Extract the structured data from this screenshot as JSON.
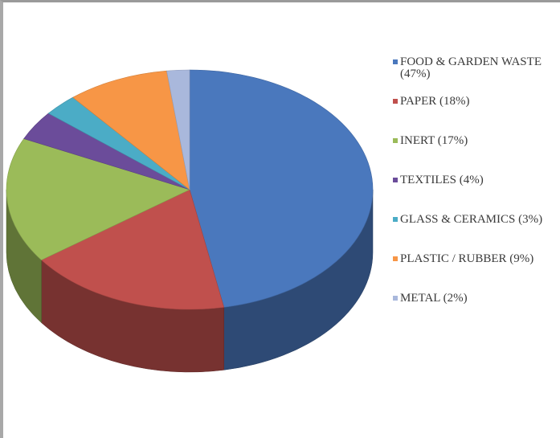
{
  "chart_data": {
    "type": "pie",
    "three_d": true,
    "legend_position": "right",
    "slices": [
      {
        "label": "FOOD & GARDEN WASTE (47%)",
        "value": 47,
        "color": "#4a78bd"
      },
      {
        "label": "PAPER (18%)",
        "value": 18,
        "color": "#c0504d"
      },
      {
        "label": "INERT (17%)",
        "value": 17,
        "color": "#9bbb59"
      },
      {
        "label": "TEXTILES (4%)",
        "value": 4,
        "color": "#6b4c9a"
      },
      {
        "label": "GLASS & CERAMICS (3%)",
        "value": 3,
        "color": "#4bacc6"
      },
      {
        "label": "PLASTIC / RUBBER (9%)",
        "value": 9,
        "color": "#f79646"
      },
      {
        "label": "METAL (2%)",
        "value": 2,
        "color": "#a9b8dc"
      }
    ]
  }
}
